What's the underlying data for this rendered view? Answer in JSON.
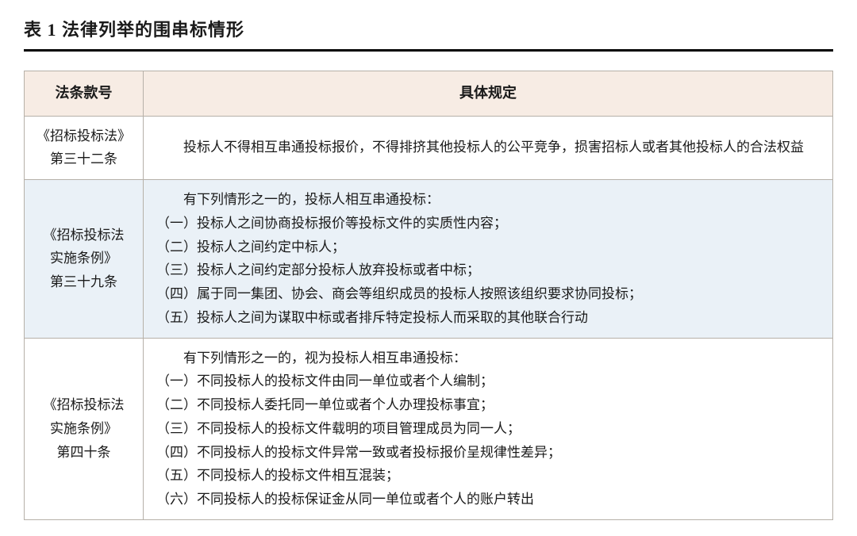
{
  "title": "表 1  法律列举的围串标情形",
  "columns": [
    "法条款号",
    "具体规定"
  ],
  "header_bg": "#f7ece4",
  "alt_row_bg": "#eaf1f7",
  "border_color": "#b6b0a8",
  "rows": [
    {
      "alt": false,
      "article_l1": "《招标投标法》",
      "article_l2": "第三十二条",
      "content": "　　投标人不得相互串通投标报价，不得排挤其他投标人的公平竞争，损害招标人或者其他投标人的合法权益"
    },
    {
      "alt": true,
      "article_l1": "《招标投标法",
      "article_l2": "实施条例》",
      "article_l3": "第三十九条",
      "content": "　　有下列情形之一的，投标人相互串通投标：\n（一）投标人之间协商投标报价等投标文件的实质性内容；\n（二）投标人之间约定中标人；\n（三）投标人之间约定部分投标人放弃投标或者中标；\n（四）属于同一集团、协会、商会等组织成员的投标人按照该组织要求协同投标；\n（五）投标人之间为谋取中标或者排斥特定投标人而采取的其他联合行动"
    },
    {
      "alt": false,
      "article_l1": "《招标投标法",
      "article_l2": "实施条例》",
      "article_l3": "第四十条",
      "content": "　　有下列情形之一的，视为投标人相互串通投标：\n（一）不同投标人的投标文件由同一单位或者个人编制；\n（二）不同投标人委托同一单位或者个人办理投标事宜；\n（三）不同投标人的投标文件载明的项目管理成员为同一人；\n（四）不同投标人的投标文件异常一致或者投标报价呈规律性差异；\n（五）不同投标人的投标文件相互混装；\n（六）不同投标人的投标保证金从同一单位或者个人的账户转出"
    }
  ]
}
